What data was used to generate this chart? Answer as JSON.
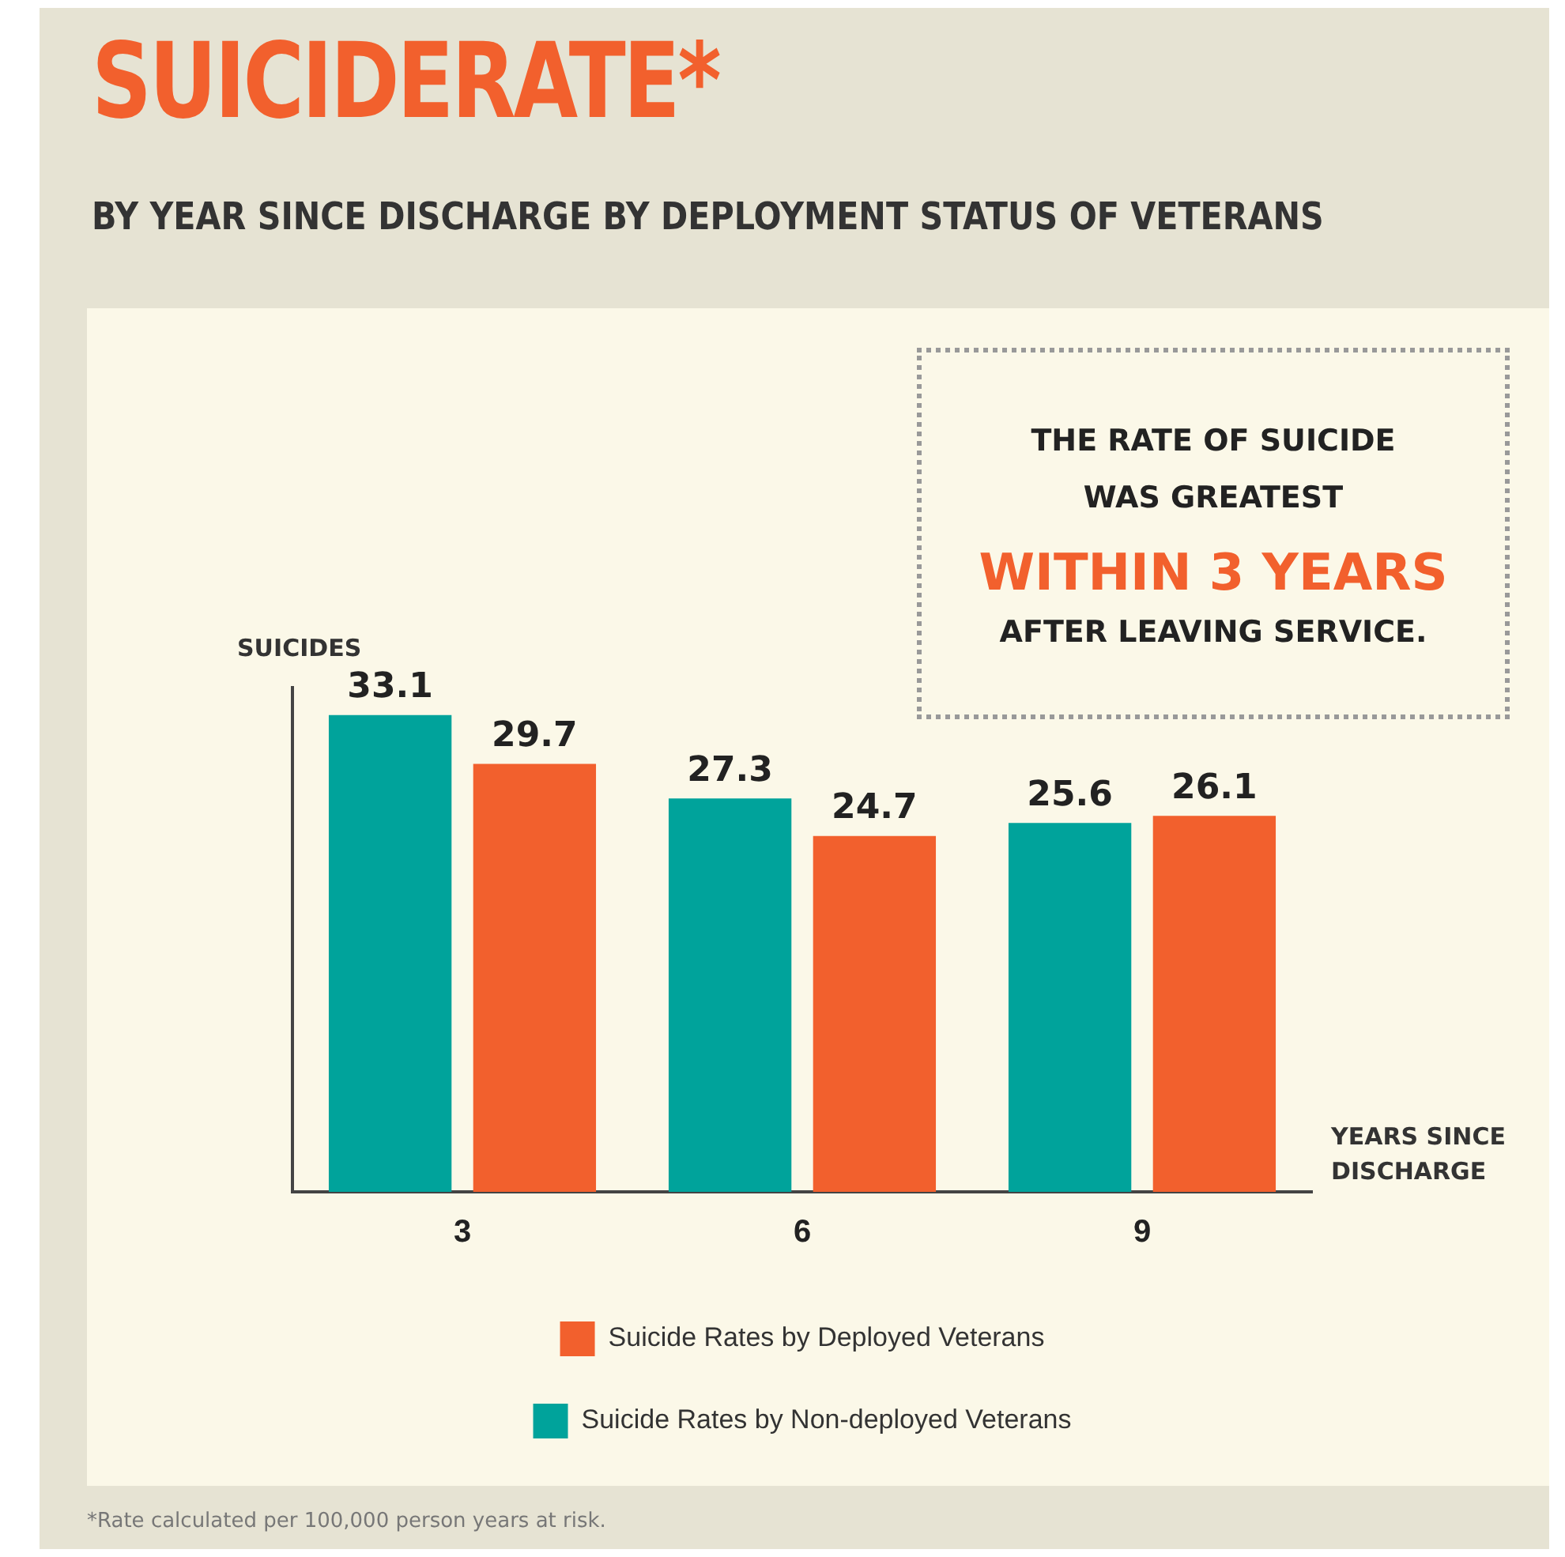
{
  "chart_data": {
    "type": "bar",
    "title": "SUICIDERATE*",
    "subtitle": "BY YEAR SINCE DISCHARGE BY DEPLOYMENT STATUS OF VETERANS",
    "xlabel": "YEARS SINCE DISCHARGE",
    "ylabel": "SUICIDES",
    "categories": [
      "3",
      "6",
      "9"
    ],
    "series": [
      {
        "name": "Suicide Rates by Non-deployed Veterans",
        "color": "#00a39b",
        "values": [
          33.1,
          27.3,
          25.6
        ]
      },
      {
        "name": "Suicide Rates by Deployed Veterans",
        "color": "#f2602d",
        "values": [
          29.7,
          24.7,
          26.1
        ]
      }
    ],
    "data_labels": true,
    "legend": "bottom",
    "grid": false,
    "tick_labels": "x",
    "annotations": [
      "THE RATE OF SUICIDE WAS GREATEST",
      "WITHIN 3 YEARS",
      "AFTER LEAVING SERVICE.",
      "*Rate calculated per 100,000 person years at risk."
    ]
  }
}
